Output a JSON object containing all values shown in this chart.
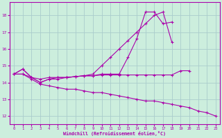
{
  "bg_color": "#cceedd",
  "line_color": "#aa00aa",
  "grid_color": "#aacccc",
  "xlabel": "Windchill (Refroidissement éolien,°C)",
  "xlabel_color": "#aa00aa",
  "ylim": [
    11.5,
    18.8
  ],
  "xlim": [
    -0.5,
    23.5
  ],
  "yticks": [
    12,
    13,
    14,
    15,
    16,
    17,
    18
  ],
  "xticks": [
    0,
    1,
    2,
    3,
    4,
    5,
    6,
    7,
    8,
    9,
    10,
    11,
    12,
    13,
    14,
    15,
    16,
    17,
    18,
    19,
    20,
    21,
    22,
    23
  ],
  "series": [
    {
      "x": [
        0,
        1,
        2,
        3,
        4,
        5,
        6,
        7,
        8,
        9,
        10,
        11,
        12,
        13,
        14,
        15,
        16,
        17,
        18,
        19,
        20,
        21,
        22,
        23
      ],
      "y": [
        14.5,
        14.8,
        14.3,
        14.0,
        14.2,
        14.3,
        14.3,
        14.35,
        14.4,
        14.4,
        14.5,
        14.5,
        14.5,
        15.5,
        16.6,
        18.2,
        18.2,
        17.5,
        17.6,
        null,
        null,
        null,
        null,
        null
      ]
    },
    {
      "x": [
        0,
        1,
        2,
        3,
        4,
        5,
        6,
        7,
        8,
        9,
        10,
        11,
        12,
        13,
        14,
        15,
        16,
        17,
        18
      ],
      "y": [
        14.5,
        14.5,
        14.3,
        14.0,
        14.2,
        14.2,
        14.3,
        14.35,
        14.4,
        14.5,
        15.0,
        15.5,
        16.0,
        16.5,
        17.0,
        17.5,
        18.0,
        18.2,
        16.4
      ]
    },
    {
      "x": [
        0,
        1,
        2,
        3,
        4,
        5,
        6,
        7,
        8,
        9,
        10,
        11,
        12,
        13,
        14,
        15,
        16,
        17,
        18,
        19,
        20
      ],
      "y": [
        14.5,
        14.8,
        14.3,
        14.2,
        14.3,
        14.3,
        14.3,
        14.35,
        14.4,
        14.4,
        14.45,
        14.45,
        14.45,
        14.45,
        14.45,
        14.45,
        14.45,
        14.45,
        14.45,
        14.7,
        14.7
      ]
    },
    {
      "x": [
        0,
        1,
        2,
        3,
        4,
        5,
        6,
        7,
        8,
        9,
        10,
        11,
        12,
        13,
        14,
        15,
        16,
        17,
        18,
        19,
        20,
        21,
        22,
        23
      ],
      "y": [
        14.5,
        14.5,
        14.2,
        13.9,
        13.8,
        13.7,
        13.6,
        13.6,
        13.5,
        13.4,
        13.4,
        13.3,
        13.2,
        13.1,
        13.0,
        12.9,
        12.9,
        12.8,
        12.7,
        12.6,
        12.5,
        12.3,
        12.2,
        12.0
      ]
    }
  ]
}
